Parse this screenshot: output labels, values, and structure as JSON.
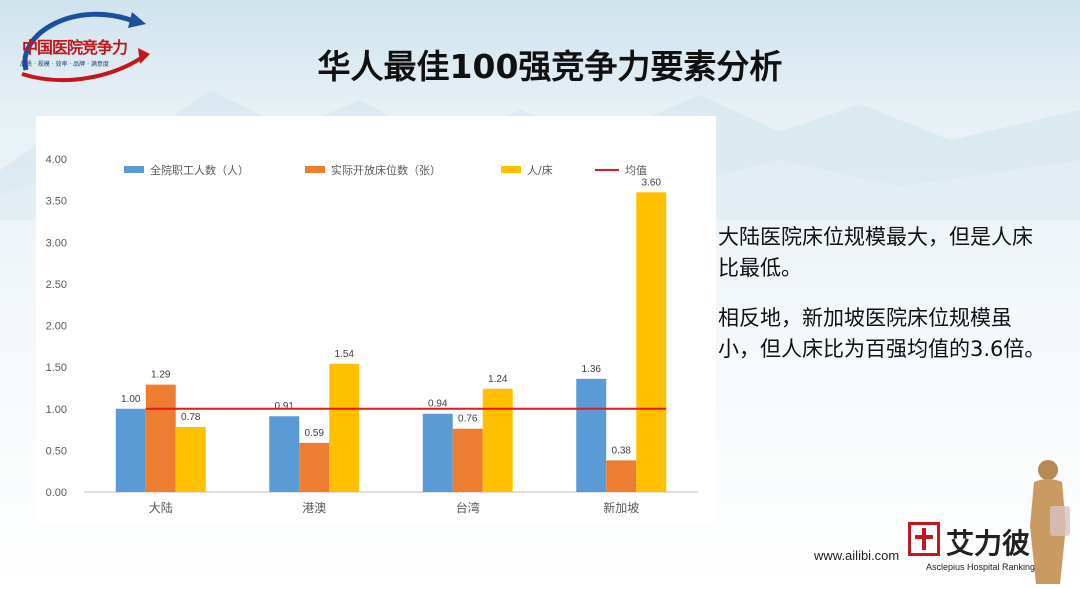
{
  "header": {
    "title": "华人最佳100强竞争力要素分析",
    "logo_text": "中国医院竞争力",
    "logo_subtitle": "品质 · 规模 · 效率 · 品牌 · 满意度"
  },
  "commentary": {
    "paragraph1": "大陆医院床位规模最大，但是人床比最低。",
    "paragraph2": "相反地，新加坡医院床位规模虽小，但人床比为百强均值的3.6倍。"
  },
  "footer": {
    "website": "www.ailibi.com",
    "brand_name": "艾力彼",
    "brand_subtitle": "Asclepius Hospital Ranking"
  },
  "colors": {
    "staff": "#5b9bd5",
    "beds": "#ed7d31",
    "ratio": "#ffc000",
    "mean": "#e31a1c",
    "brand_red": "#c4161c"
  },
  "chart_data": {
    "type": "bar",
    "title": "",
    "xlabel": "",
    "ylabel": "",
    "categories": [
      "大陆",
      "港澳",
      "台湾",
      "新加坡"
    ],
    "series": [
      {
        "name": "全院职工人数（人）",
        "values": [
          1.0,
          0.91,
          0.94,
          1.36
        ],
        "labels": [
          "1.00",
          "0.91",
          "0.94",
          "1.36"
        ]
      },
      {
        "name": "实际开放床位数（张）",
        "values": [
          1.29,
          0.59,
          0.76,
          0.38
        ],
        "labels": [
          "1.29",
          "0.59",
          "0.76",
          "0.38"
        ]
      },
      {
        "name": "人/床",
        "values": [
          0.78,
          1.54,
          1.24,
          3.6
        ],
        "labels": [
          "0.78",
          "1.54",
          "1.24",
          "3.60"
        ]
      }
    ],
    "reference_line": {
      "name": "均值",
      "value": 1.0
    },
    "ylim": [
      0,
      4
    ],
    "yticks": [
      "0.00",
      "0.50",
      "1.00",
      "1.50",
      "2.00",
      "2.50",
      "3.00",
      "3.50",
      "4.00"
    ],
    "grid": false,
    "legend_position": "top"
  }
}
